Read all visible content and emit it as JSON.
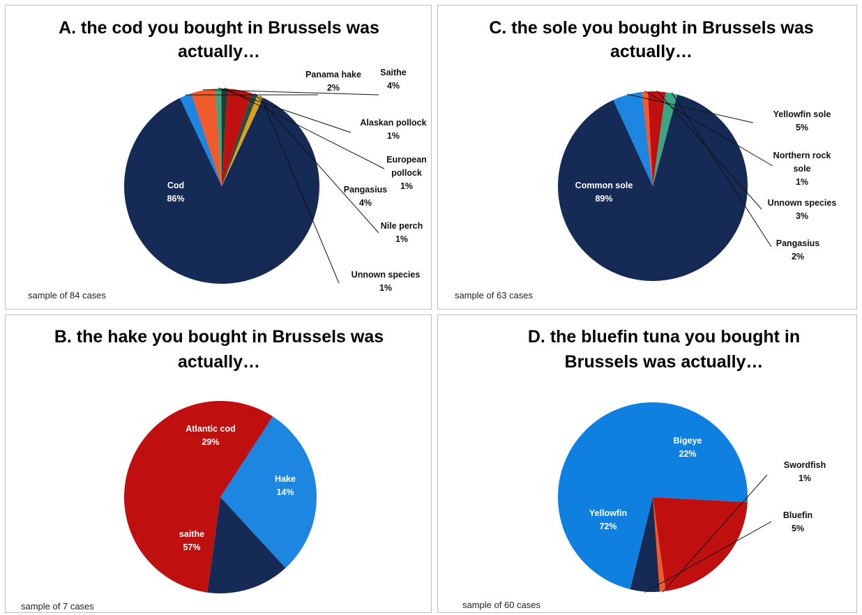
{
  "chart_data": [
    {
      "id": "A",
      "type": "pie",
      "title_lines": [
        "A. the cod you bought in Brussels was",
        "actually…"
      ],
      "note": "sample of 84 cases",
      "start_angle_deg": 295,
      "slices": [
        {
          "label": "Cod",
          "value": 86,
          "text": "86%",
          "color": "#152a55"
        },
        {
          "label": "Panama hake",
          "value": 2,
          "text": "2%",
          "color": "#1c86e0"
        },
        {
          "label": "Saithe",
          "value": 4,
          "text": "4%",
          "color": "#f15a2b"
        },
        {
          "label": "Alaskan pollock",
          "value": 1,
          "text": "1%",
          "color": "#3ba584"
        },
        {
          "label": "European pollock",
          "value": 1,
          "text": "1%",
          "color": "#1f3d33"
        },
        {
          "label": "Pangasius",
          "value": 4,
          "text": "4%",
          "color": "#c00f0f"
        },
        {
          "label": "Nile perch",
          "value": 1,
          "text": "1%",
          "color": "#2f4a3c"
        },
        {
          "label": "Unnown species",
          "value": 1,
          "text": "1%",
          "color": "#d9a21b"
        }
      ]
    },
    {
      "id": "C",
      "type": "pie",
      "title_lines": [
        "C. the sole you bought in Brussels was",
        "actually…"
      ],
      "note": "sample of 63 cases",
      "start_angle_deg": 285,
      "slices": [
        {
          "label": "Common sole",
          "value": 89,
          "text": "89%",
          "color": "#152a55"
        },
        {
          "label": "Yellowfin sole",
          "value": 5,
          "text": "5%",
          "color": "#1c86e0"
        },
        {
          "label": "Northern rock sole",
          "value": 1,
          "text": "1%",
          "color": "#f15a2b"
        },
        {
          "label": "Unnown species",
          "value": 3,
          "text": "3%",
          "color": "#c00f0f"
        },
        {
          "label": "Pangasius",
          "value": 2,
          "text": "2%",
          "color": "#3ba584"
        }
      ]
    },
    {
      "id": "B",
      "type": "pie",
      "title_lines": [
        "B. the hake you bought in Brussels was",
        "actually…"
      ],
      "note": "sample of 7 cases",
      "start_angle_deg": 303,
      "slices": [
        {
          "label": "Atlantic cod",
          "value": 29,
          "text": "29%",
          "color": "#1c86e0"
        },
        {
          "label": "Hake",
          "value": 14,
          "text": "14%",
          "color": "#152a55"
        },
        {
          "label": "saithe",
          "value": 57,
          "text": "57%",
          "color": "#c00f0f"
        }
      ]
    },
    {
      "id": "D",
      "type": "pie",
      "title_lines": [
        "D. the bluefin tuna you bought in",
        "Brussels was actually…"
      ],
      "note": "sample of 60 cases",
      "start_angle_deg": 3,
      "slices": [
        {
          "label": "Bigeye",
          "value": 22,
          "text": "22%",
          "color": "#c00f0f"
        },
        {
          "label": "Swordfish",
          "value": 1,
          "text": "1%",
          "color": "#f15a2b"
        },
        {
          "label": "Bluefin",
          "value": 5,
          "text": "5%",
          "color": "#152a55"
        },
        {
          "label": "Yellowfin",
          "value": 72,
          "text": "72%",
          "color": "#0f7fe0"
        }
      ]
    }
  ]
}
